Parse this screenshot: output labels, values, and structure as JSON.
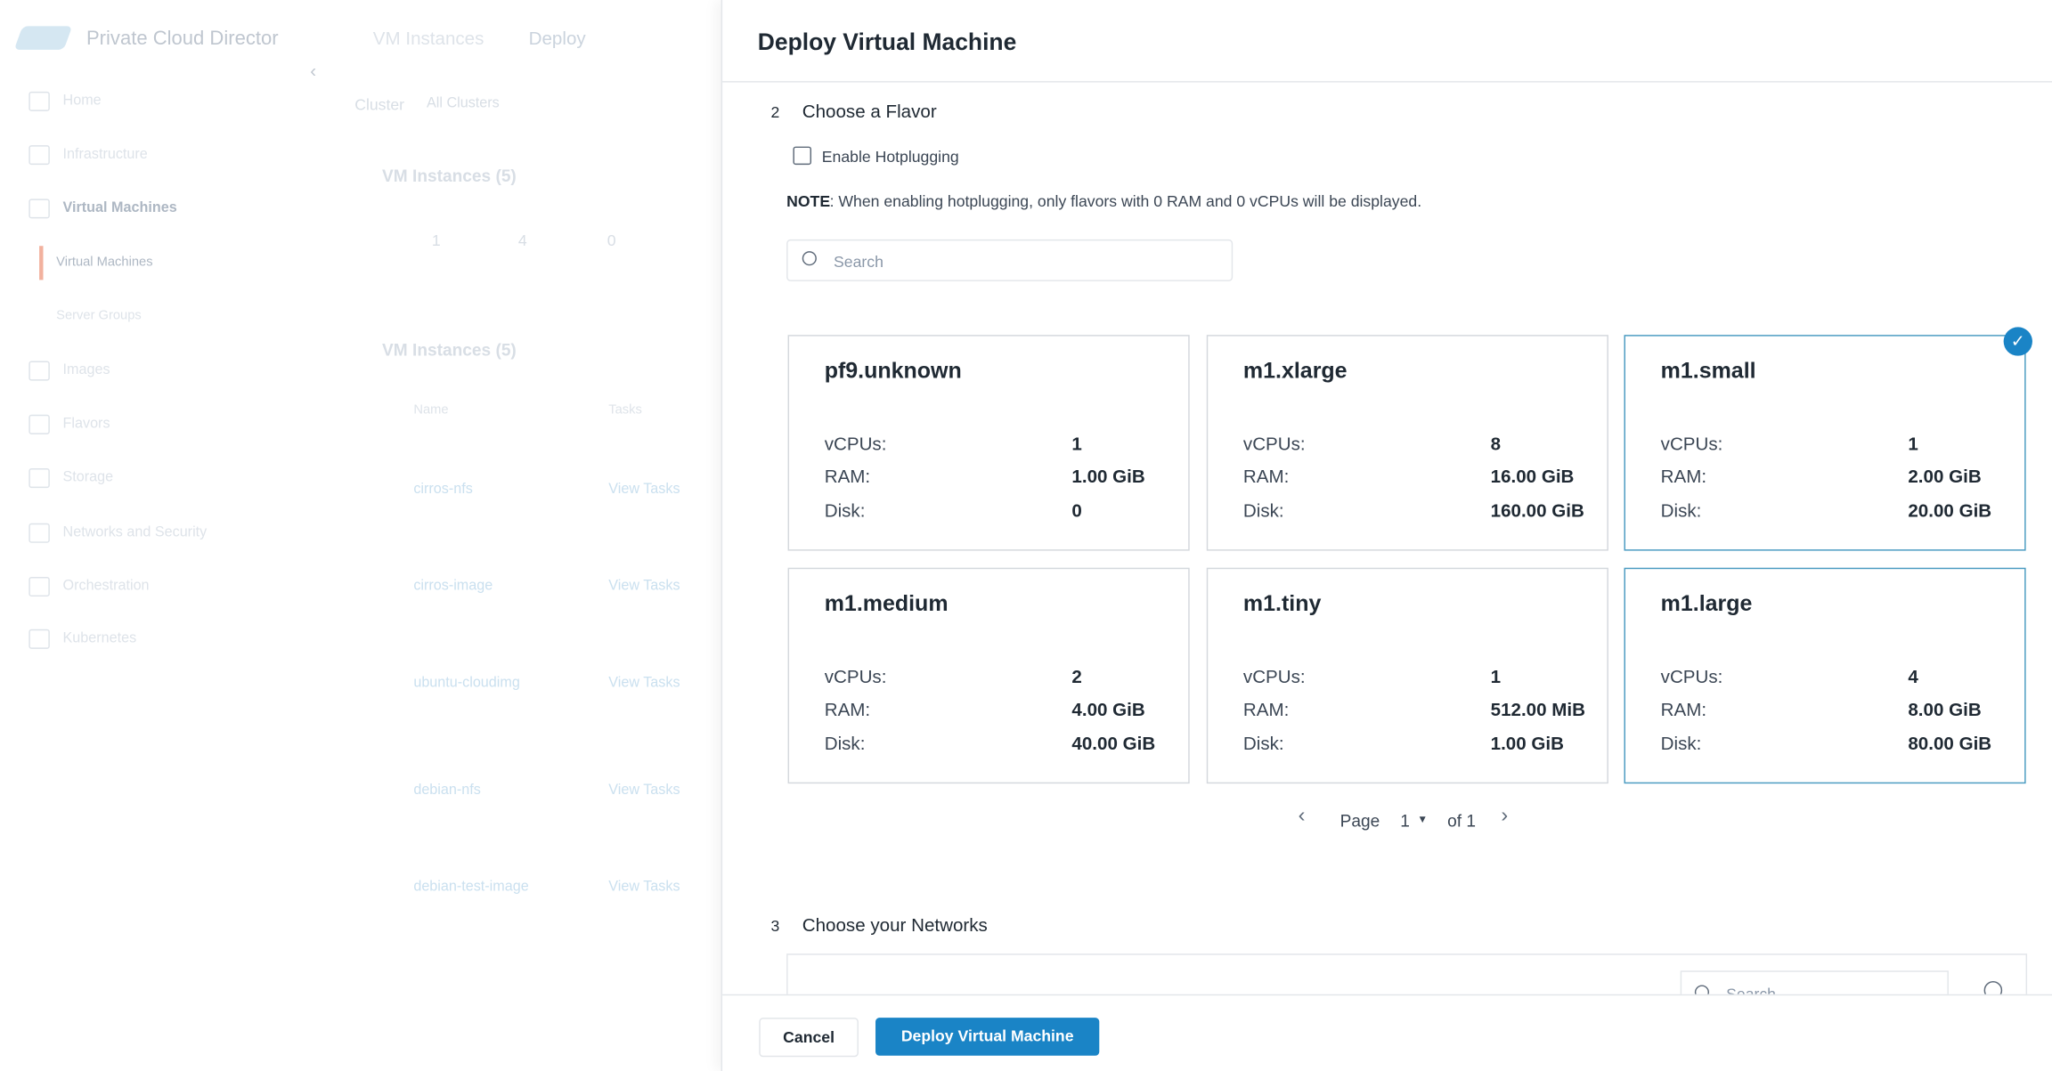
{
  "sidebar": {
    "brand": "Private Cloud Director",
    "nav": [
      "Home",
      "Infrastructure",
      "Virtual Machines",
      "Virtual Machines",
      "Server Groups",
      "Images",
      "Flavors",
      "Storage",
      "Networks and Security",
      "Orchestration",
      "Kubernetes"
    ]
  },
  "background": {
    "breadcrumb": [
      "VM Instances",
      "Deploy"
    ],
    "cluster_label": "Cluster",
    "cluster_value": "All Clusters",
    "summary_title": "VM Instances (5)",
    "stats": [
      "1",
      "4",
      "0"
    ],
    "table_title": "VM Instances (5)",
    "columns": [
      "Name",
      "Tasks"
    ],
    "rows": [
      [
        "cirros-nfs",
        "View Tasks"
      ],
      [
        "cirros-image",
        "View Tasks"
      ],
      [
        "ubuntu-cloudimg",
        "View Tasks"
      ],
      [
        "debian-nfs",
        "View Tasks"
      ],
      [
        "debian-test-image",
        "View Tasks"
      ]
    ]
  },
  "panel": {
    "title": "Deploy Virtual Machine",
    "step2": {
      "number": "2",
      "title": "Choose a Flavor",
      "checkbox": "Enable Hotplugging",
      "note_label": "NOTE",
      "note": ": When enabling hotplugging, only flavors with 0 RAM and 0 vCPUs will be displayed.",
      "search": "Search"
    },
    "spec_labels": [
      "vCPUs:",
      "RAM:",
      "Disk:"
    ],
    "flavors": [
      {
        "name": "pf9.unknown",
        "specs": [
          "1",
          "1.00 GiB",
          "0"
        ]
      },
      {
        "name": "m1.xlarge",
        "specs": [
          "8",
          "16.00 GiB",
          "160.00 GiB"
        ]
      },
      {
        "name": "m1.small",
        "specs": [
          "1",
          "2.00 GiB",
          "20.00 GiB"
        ],
        "state": "selected"
      },
      {
        "name": "m1.medium",
        "specs": [
          "2",
          "4.00 GiB",
          "40.00 GiB"
        ]
      },
      {
        "name": "m1.tiny",
        "specs": [
          "1",
          "512.00 MiB",
          "1.00 GiB"
        ]
      },
      {
        "name": "m1.large",
        "specs": [
          "4",
          "8.00 GiB",
          "80.00 GiB"
        ],
        "state": "hover"
      }
    ],
    "pagination": {
      "page_label": "Page",
      "page": "1",
      "of": "of 1"
    },
    "step3": {
      "number": "3",
      "title": "Choose your Networks",
      "search": "Search"
    },
    "buttons": {
      "cancel": "Cancel",
      "deploy": "Deploy Virtual Machine"
    }
  }
}
